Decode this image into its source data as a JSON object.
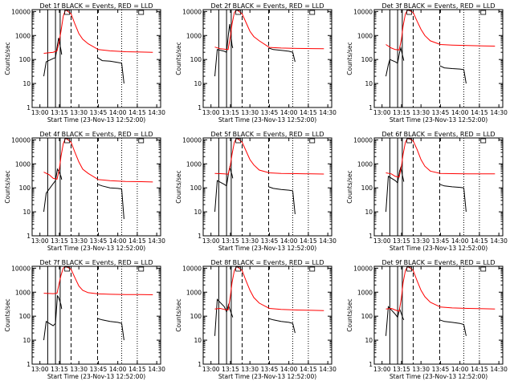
{
  "chart_data": {
    "type": "line",
    "panels": [
      {
        "title": "Det 1f BLACK = Events, RED = LLD",
        "red": [
          [
            13.05,
            180
          ],
          [
            13.12,
            190
          ],
          [
            13.17,
            200
          ],
          [
            13.22,
            230
          ],
          [
            13.25,
            600
          ],
          [
            13.27,
            1500
          ],
          [
            13.3,
            6500
          ],
          [
            13.33,
            12000
          ],
          [
            13.4,
            8000
          ],
          [
            13.45,
            3000
          ],
          [
            13.5,
            1200
          ],
          [
            13.55,
            700
          ],
          [
            13.62,
            450
          ],
          [
            13.75,
            260
          ],
          [
            13.9,
            230
          ],
          [
            14.1,
            210
          ],
          [
            14.3,
            205
          ],
          [
            14.45,
            200
          ]
        ],
        "black": [
          [
            13.05,
            20
          ],
          [
            13.08,
            80
          ],
          [
            13.17,
            110
          ],
          [
            13.2,
            120
          ],
          [
            13.225,
            400
          ],
          [
            13.24,
            800
          ],
          [
            13.27,
            250
          ],
          [
            13.28,
            160
          ],
          [
            13.4,
            null
          ],
          [
            13.74,
            120
          ],
          [
            13.8,
            90
          ],
          [
            13.9,
            85
          ],
          [
            14.0,
            75
          ],
          [
            14.05,
            70
          ],
          [
            14.08,
            10
          ]
        ]
      },
      {
        "title": "Det 2f BLACK = Events, RED = LLD",
        "red": [
          [
            13.05,
            330
          ],
          [
            13.12,
            280
          ],
          [
            13.17,
            270
          ],
          [
            13.22,
            260
          ],
          [
            13.25,
            900
          ],
          [
            13.27,
            3000
          ],
          [
            13.3,
            9000
          ],
          [
            13.33,
            12000
          ],
          [
            13.4,
            8000
          ],
          [
            13.45,
            3500
          ],
          [
            13.5,
            1500
          ],
          [
            13.55,
            900
          ],
          [
            13.62,
            600
          ],
          [
            13.75,
            320
          ],
          [
            13.9,
            300
          ],
          [
            14.1,
            290
          ],
          [
            14.3,
            285
          ],
          [
            14.45,
            280
          ]
        ],
        "black": [
          [
            13.05,
            20
          ],
          [
            13.08,
            260
          ],
          [
            13.17,
            220
          ],
          [
            13.2,
            200
          ],
          [
            13.225,
            1200
          ],
          [
            13.24,
            3000
          ],
          [
            13.27,
            400
          ],
          [
            13.28,
            300
          ],
          [
            13.4,
            null
          ],
          [
            13.74,
            300
          ],
          [
            13.8,
            260
          ],
          [
            13.9,
            240
          ],
          [
            14.0,
            220
          ],
          [
            14.05,
            200
          ],
          [
            14.08,
            80
          ]
        ]
      },
      {
        "title": "Det 3f BLACK = Events, RED = LLD",
        "red": [
          [
            13.05,
            420
          ],
          [
            13.12,
            300
          ],
          [
            13.17,
            260
          ],
          [
            13.22,
            250
          ],
          [
            13.25,
            700
          ],
          [
            13.27,
            2500
          ],
          [
            13.3,
            8000
          ],
          [
            13.33,
            12000
          ],
          [
            13.4,
            9000
          ],
          [
            13.45,
            4000
          ],
          [
            13.5,
            1800
          ],
          [
            13.55,
            1000
          ],
          [
            13.62,
            600
          ],
          [
            13.75,
            420
          ],
          [
            13.9,
            400
          ],
          [
            14.1,
            380
          ],
          [
            14.3,
            370
          ],
          [
            14.45,
            360
          ]
        ],
        "black": [
          [
            13.05,
            20
          ],
          [
            13.08,
            60
          ],
          [
            13.1,
            100
          ],
          [
            13.17,
            80
          ],
          [
            13.2,
            70
          ],
          [
            13.225,
            200
          ],
          [
            13.24,
            300
          ],
          [
            13.27,
            120
          ],
          [
            13.28,
            90
          ],
          [
            13.4,
            null
          ],
          [
            13.74,
            55
          ],
          [
            13.8,
            45
          ],
          [
            13.9,
            42
          ],
          [
            14.0,
            40
          ],
          [
            14.05,
            38
          ],
          [
            14.08,
            10
          ]
        ]
      },
      {
        "title": "Det 4f BLACK = Events, RED = LLD",
        "red": [
          [
            13.05,
            450
          ],
          [
            13.12,
            350
          ],
          [
            13.17,
            250
          ],
          [
            13.22,
            230
          ],
          [
            13.25,
            600
          ],
          [
            13.27,
            2000
          ],
          [
            13.3,
            7000
          ],
          [
            13.33,
            12000
          ],
          [
            13.4,
            8000
          ],
          [
            13.45,
            3000
          ],
          [
            13.5,
            1200
          ],
          [
            13.55,
            600
          ],
          [
            13.62,
            400
          ],
          [
            13.75,
            220
          ],
          [
            13.9,
            200
          ],
          [
            14.1,
            185
          ],
          [
            14.3,
            180
          ],
          [
            14.45,
            175
          ]
        ],
        "black": [
          [
            13.05,
            10
          ],
          [
            13.08,
            60
          ],
          [
            13.17,
            150
          ],
          [
            13.2,
            200
          ],
          [
            13.225,
            600
          ],
          [
            13.24,
            500
          ],
          [
            13.27,
            300
          ],
          [
            13.28,
            220
          ],
          [
            13.4,
            null
          ],
          [
            13.74,
            140
          ],
          [
            13.8,
            120
          ],
          [
            13.9,
            100
          ],
          [
            14.0,
            95
          ],
          [
            14.05,
            90
          ],
          [
            14.08,
            5
          ]
        ]
      },
      {
        "title": "Det 5f BLACK = Events, RED = LLD",
        "red": [
          [
            13.05,
            400
          ],
          [
            13.12,
            390
          ],
          [
            13.17,
            380
          ],
          [
            13.22,
            370
          ],
          [
            13.25,
            900
          ],
          [
            13.27,
            2500
          ],
          [
            13.3,
            8000
          ],
          [
            13.33,
            12000
          ],
          [
            13.4,
            8000
          ],
          [
            13.45,
            3500
          ],
          [
            13.5,
            1500
          ],
          [
            13.55,
            900
          ],
          [
            13.62,
            550
          ],
          [
            13.75,
            420
          ],
          [
            13.9,
            400
          ],
          [
            14.1,
            390
          ],
          [
            14.3,
            380
          ],
          [
            14.45,
            375
          ]
        ],
        "black": [
          [
            13.05,
            10
          ],
          [
            13.08,
            200
          ],
          [
            13.17,
            140
          ],
          [
            13.2,
            120
          ],
          [
            13.225,
            400
          ],
          [
            13.24,
            700
          ],
          [
            13.27,
            350
          ],
          [
            13.28,
            250
          ],
          [
            13.4,
            null
          ],
          [
            13.74,
            110
          ],
          [
            13.8,
            95
          ],
          [
            13.9,
            85
          ],
          [
            14.0,
            80
          ],
          [
            14.05,
            75
          ],
          [
            14.08,
            8
          ]
        ]
      },
      {
        "title": "Det 6f BLACK = Events, RED = LLD",
        "red": [
          [
            13.05,
            420
          ],
          [
            13.12,
            380
          ],
          [
            13.17,
            300
          ],
          [
            13.22,
            280
          ],
          [
            13.25,
            800
          ],
          [
            13.27,
            2500
          ],
          [
            13.3,
            8000
          ],
          [
            13.33,
            12000
          ],
          [
            13.4,
            9000
          ],
          [
            13.45,
            4000
          ],
          [
            13.5,
            1500
          ],
          [
            13.55,
            800
          ],
          [
            13.62,
            500
          ],
          [
            13.75,
            400
          ],
          [
            13.9,
            390
          ],
          [
            14.1,
            385
          ],
          [
            14.3,
            380
          ],
          [
            14.45,
            380
          ]
        ],
        "black": [
          [
            13.05,
            10
          ],
          [
            13.08,
            300
          ],
          [
            13.17,
            200
          ],
          [
            13.2,
            160
          ],
          [
            13.225,
            500
          ],
          [
            13.24,
            700
          ],
          [
            13.27,
            250
          ],
          [
            13.28,
            180
          ],
          [
            13.4,
            null
          ],
          [
            13.74,
            140
          ],
          [
            13.8,
            120
          ],
          [
            13.9,
            110
          ],
          [
            14.0,
            105
          ],
          [
            14.05,
            100
          ],
          [
            14.08,
            10
          ]
        ]
      },
      {
        "title": "Det 7f BLACK = Events, RED = LLD",
        "red": [
          [
            13.05,
            900
          ],
          [
            13.12,
            880
          ],
          [
            13.17,
            870
          ],
          [
            13.22,
            900
          ],
          [
            13.25,
            2500
          ],
          [
            13.27,
            5000
          ],
          [
            13.3,
            10000
          ],
          [
            13.33,
            12000
          ],
          [
            13.4,
            9000
          ],
          [
            13.45,
            4000
          ],
          [
            13.5,
            1800
          ],
          [
            13.55,
            1200
          ],
          [
            13.62,
            950
          ],
          [
            13.75,
            850
          ],
          [
            13.9,
            820
          ],
          [
            14.1,
            800
          ],
          [
            14.3,
            790
          ],
          [
            14.45,
            780
          ]
        ],
        "black": [
          [
            13.05,
            10
          ],
          [
            13.08,
            60
          ],
          [
            13.17,
            40
          ],
          [
            13.2,
            50
          ],
          [
            13.225,
            700
          ],
          [
            13.24,
            600
          ],
          [
            13.27,
            300
          ],
          [
            13.28,
            200
          ],
          [
            13.4,
            null
          ],
          [
            13.74,
            80
          ],
          [
            13.8,
            70
          ],
          [
            13.9,
            60
          ],
          [
            14.0,
            55
          ],
          [
            14.05,
            50
          ],
          [
            14.08,
            10
          ]
        ]
      },
      {
        "title": "Det 8f BLACK = Events, RED = LLD",
        "red": [
          [
            13.05,
            200
          ],
          [
            13.12,
            210
          ],
          [
            13.17,
            190
          ],
          [
            13.22,
            180
          ],
          [
            13.25,
            700
          ],
          [
            13.27,
            2500
          ],
          [
            13.3,
            8000
          ],
          [
            13.33,
            12000
          ],
          [
            13.4,
            8000
          ],
          [
            13.45,
            3000
          ],
          [
            13.5,
            1200
          ],
          [
            13.55,
            600
          ],
          [
            13.62,
            350
          ],
          [
            13.75,
            210
          ],
          [
            13.9,
            190
          ],
          [
            14.1,
            180
          ],
          [
            14.3,
            175
          ],
          [
            14.45,
            170
          ]
        ],
        "black": [
          [
            13.05,
            15
          ],
          [
            13.08,
            500
          ],
          [
            13.17,
            250
          ],
          [
            13.2,
            150
          ],
          [
            13.225,
            300
          ],
          [
            13.24,
            200
          ],
          [
            13.27,
            110
          ],
          [
            13.28,
            90
          ],
          [
            13.4,
            null
          ],
          [
            13.74,
            80
          ],
          [
            13.8,
            70
          ],
          [
            13.9,
            60
          ],
          [
            14.0,
            55
          ],
          [
            14.05,
            50
          ],
          [
            14.08,
            20
          ]
        ]
      },
      {
        "title": "Det 9f BLACK = Events, RED = LLD",
        "red": [
          [
            13.05,
            200
          ],
          [
            13.12,
            210
          ],
          [
            13.17,
            180
          ],
          [
            13.22,
            160
          ],
          [
            13.25,
            600
          ],
          [
            13.27,
            2500
          ],
          [
            13.3,
            8000
          ],
          [
            13.33,
            12000
          ],
          [
            13.4,
            8000
          ],
          [
            13.45,
            3000
          ],
          [
            13.5,
            1200
          ],
          [
            13.55,
            650
          ],
          [
            13.62,
            380
          ],
          [
            13.75,
            240
          ],
          [
            13.9,
            220
          ],
          [
            14.1,
            210
          ],
          [
            14.3,
            205
          ],
          [
            14.45,
            200
          ]
        ],
        "black": [
          [
            13.05,
            15
          ],
          [
            13.08,
            250
          ],
          [
            13.17,
            120
          ],
          [
            13.2,
            90
          ],
          [
            13.225,
            200
          ],
          [
            13.24,
            150
          ],
          [
            13.27,
            80
          ],
          [
            13.28,
            70
          ],
          [
            13.4,
            null
          ],
          [
            13.74,
            70
          ],
          [
            13.8,
            60
          ],
          [
            13.9,
            55
          ],
          [
            14.0,
            50
          ],
          [
            14.05,
            45
          ],
          [
            14.08,
            15
          ]
        ]
      }
    ],
    "x_ticks": [
      "13:00",
      "13:15",
      "13:30",
      "13:45",
      "14:00",
      "14:15",
      "14:30"
    ],
    "x_tick_values": [
      13.0,
      13.25,
      13.5,
      13.75,
      14.0,
      14.25,
      14.5
    ],
    "y_ticks": [
      "1",
      "10",
      "100",
      "1000",
      "10000"
    ],
    "y_tick_values": [
      1,
      10,
      100,
      1000,
      10000
    ],
    "xlim": [
      12.9,
      14.55
    ],
    "ylim": [
      1,
      12000
    ],
    "y_scale": "log",
    "xlabel": "Start Time (23-Nov-13 12:52:00)",
    "ylabel": "Counts/sec",
    "solid_vlines": [
      13.1,
      13.2,
      13.26
    ],
    "dashed_vlines": [
      13.4,
      13.74
    ],
    "dotted_vlines": [
      14.05,
      14.25
    ],
    "series_colors": {
      "black": "#000000",
      "red": "#ff0000"
    }
  }
}
